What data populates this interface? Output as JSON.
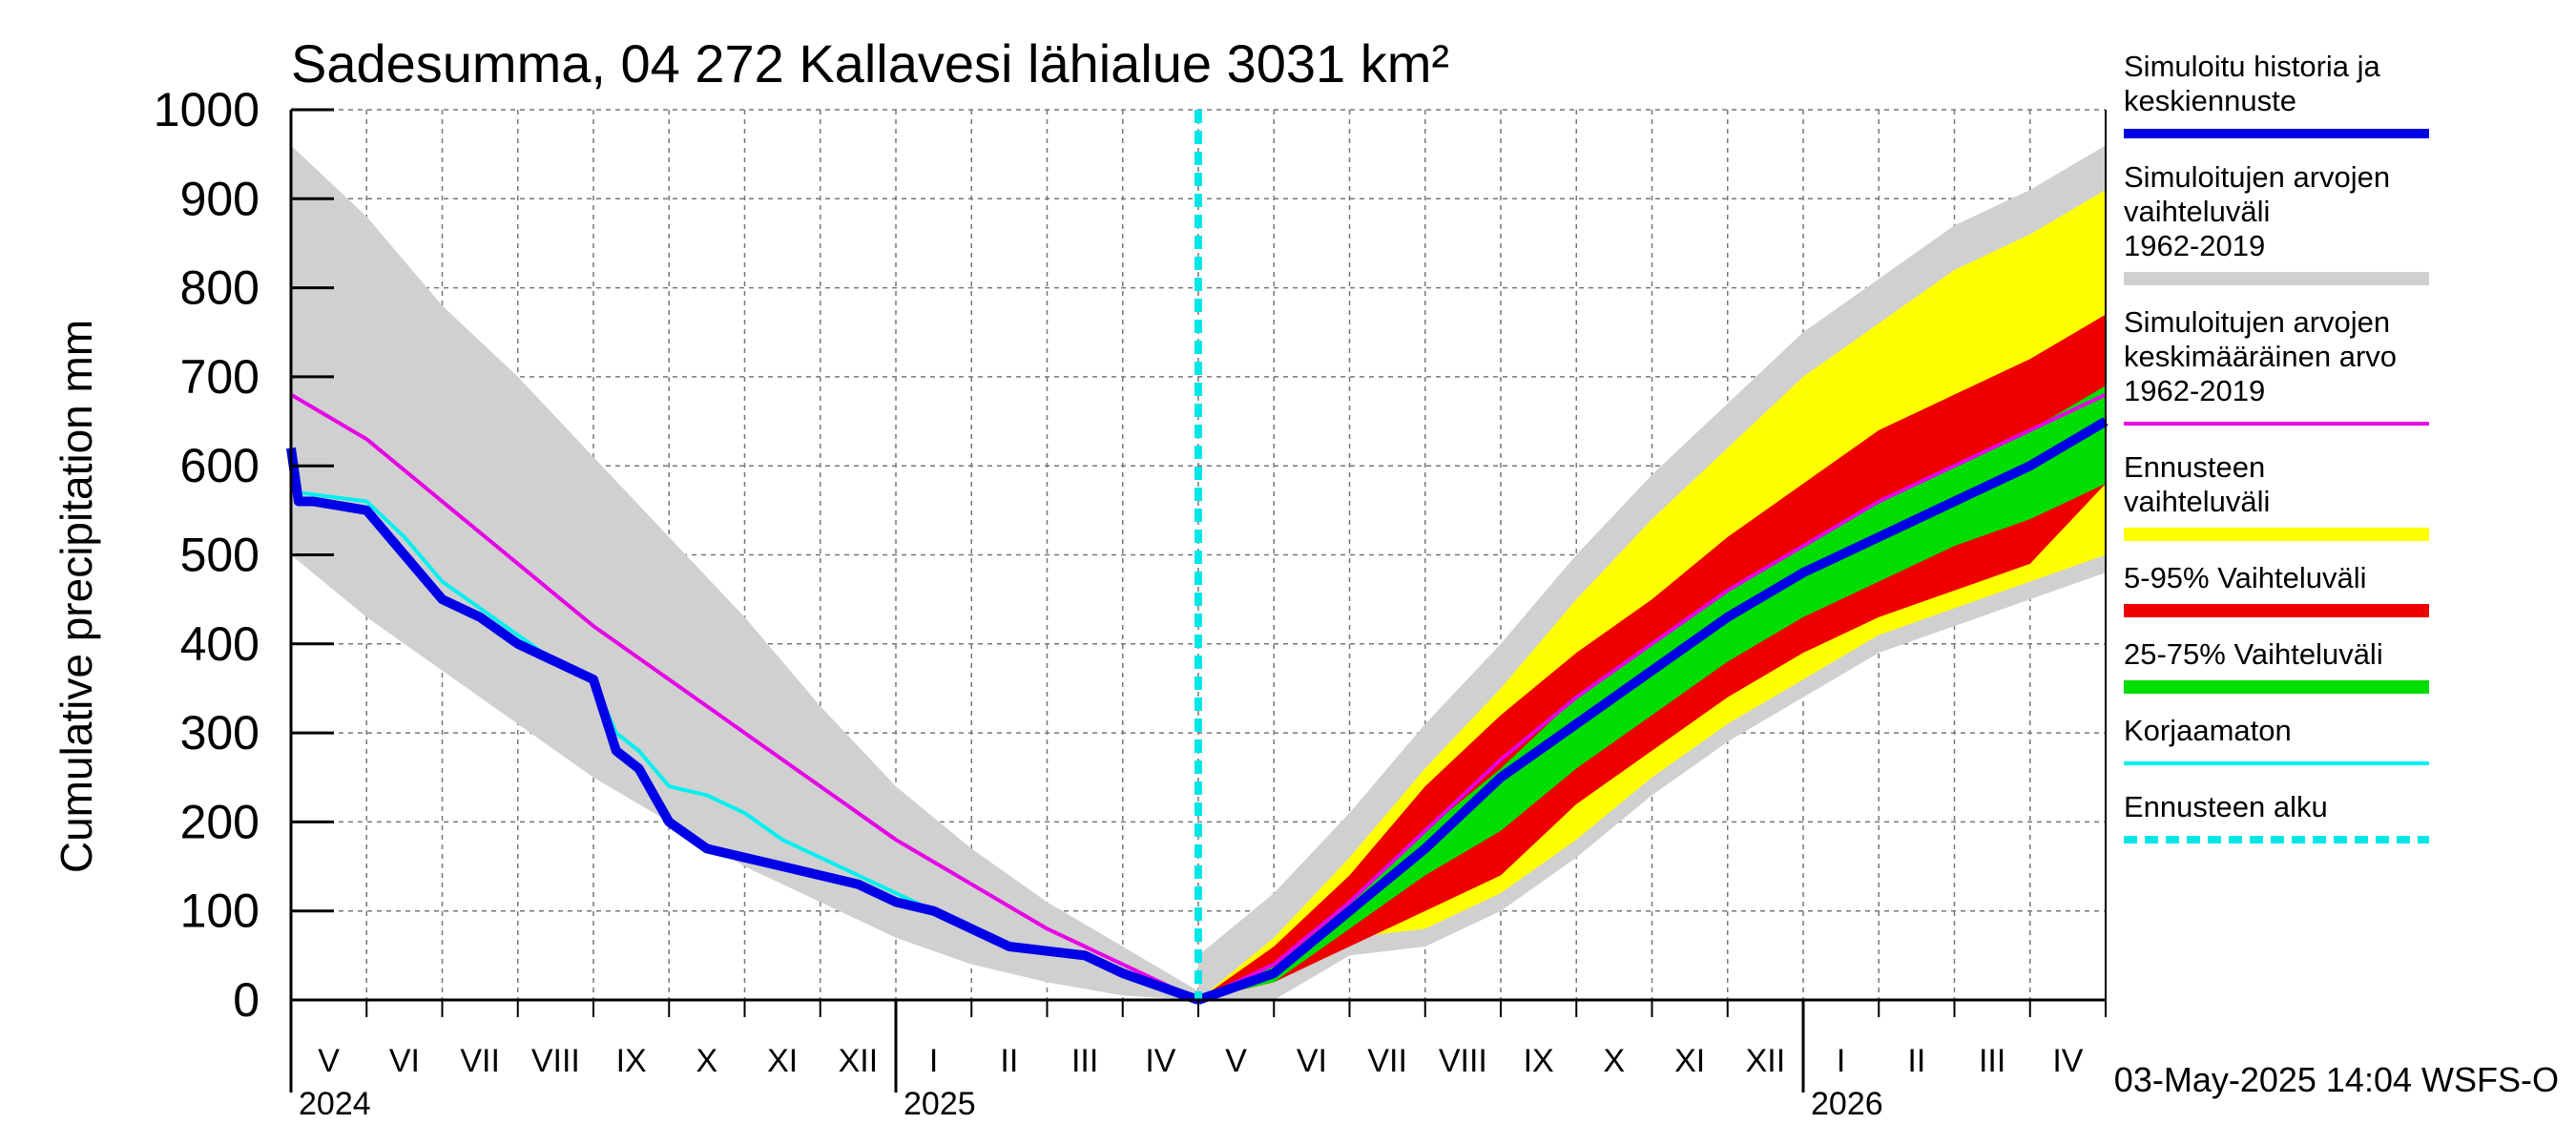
{
  "chart_data": {
    "type": "area",
    "title": "Sadesumma, 04 272 Kallavesi lähialue 3031 km²",
    "ylabel": "Cumulative precipitation   mm",
    "ylim": [
      0,
      1000
    ],
    "yticks": [
      0,
      100,
      200,
      300,
      400,
      500,
      600,
      700,
      800,
      900,
      1000
    ],
    "x_range_months": [
      0,
      24
    ],
    "forecast_start_month": 12,
    "month_labels": [
      "V",
      "VI",
      "VII",
      "VIII",
      "IX",
      "X",
      "XI",
      "XII",
      "I",
      "II",
      "III",
      "IV",
      "V",
      "VI",
      "VII",
      "VIII",
      "IX",
      "X",
      "XI",
      "XII",
      "I",
      "II",
      "III",
      "IV"
    ],
    "year_labels": [
      {
        "label": "2024",
        "month": 0
      },
      {
        "label": "2025",
        "month": 8
      },
      {
        "label": "2026",
        "month": 20
      }
    ],
    "legend": [
      {
        "label": "Simuloitu historia ja keskiennuste",
        "color": "#0000e6",
        "style": "thick"
      },
      {
        "label": "Simuloitujen arvojen vaihteluväli 1962-2019",
        "color": "#d0d0d0",
        "style": "band"
      },
      {
        "label": "Simuloitujen arvojen keskimääräinen arvo 1962-2019",
        "color": "#e600e6",
        "style": "line"
      },
      {
        "label": "Ennusteen vaihteluväli",
        "color": "#ffff00",
        "style": "band"
      },
      {
        "label": "5-95% Vaihteluväli",
        "color": "#ee0000",
        "style": "band"
      },
      {
        "label": "25-75% Vaihteluväli",
        "color": "#00dd00",
        "style": "band"
      },
      {
        "label": "Korjaamaton",
        "color": "#00f0f0",
        "style": "line"
      },
      {
        "label": "Ennusteen alku",
        "color": "#00e6e6",
        "style": "dashed"
      }
    ],
    "series": [
      {
        "name": "hist_range_upper",
        "x": [
          0,
          1,
          2,
          3,
          4,
          5,
          6,
          7,
          8,
          9,
          10,
          11,
          12
        ],
        "values": [
          960,
          880,
          780,
          700,
          610,
          520,
          430,
          330,
          240,
          170,
          110,
          60,
          10
        ]
      },
      {
        "name": "hist_range_lower",
        "x": [
          0,
          1,
          2,
          3,
          4,
          5,
          6,
          7,
          8,
          9,
          10,
          11,
          12
        ],
        "values": [
          500,
          430,
          370,
          310,
          250,
          200,
          150,
          110,
          70,
          40,
          20,
          5,
          0
        ]
      },
      {
        "name": "simulated_history",
        "x": [
          0,
          0.1,
          0.3,
          1,
          1.5,
          2,
          2.5,
          3,
          3.5,
          4,
          4.3,
          4.6,
          5,
          5.5,
          6,
          6.5,
          7,
          7.5,
          8,
          8.5,
          9,
          9.5,
          10,
          10.5,
          11,
          11.5,
          12
        ],
        "values": [
          620,
          560,
          560,
          550,
          500,
          450,
          430,
          400,
          380,
          360,
          280,
          260,
          200,
          170,
          160,
          150,
          140,
          130,
          110,
          100,
          80,
          60,
          55,
          50,
          30,
          15,
          0
        ]
      },
      {
        "name": "uncorrected",
        "x": [
          0,
          0.1,
          1,
          1.5,
          2,
          2.5,
          3,
          3.5,
          4,
          4.3,
          4.6,
          5,
          5.5,
          6,
          6.5,
          7,
          7.5,
          8,
          8.5,
          9,
          9.5,
          10,
          10.5,
          11,
          11.5,
          12
        ],
        "values": [
          575,
          570,
          560,
          520,
          470,
          440,
          410,
          380,
          360,
          300,
          280,
          240,
          230,
          210,
          180,
          160,
          140,
          120,
          100,
          80,
          60,
          55,
          50,
          30,
          15,
          0
        ]
      },
      {
        "name": "hist_mean",
        "x": [
          0,
          1,
          2,
          3,
          4,
          5,
          6,
          7,
          8,
          9,
          10,
          11,
          12
        ],
        "values": [
          680,
          630,
          560,
          490,
          420,
          360,
          300,
          240,
          180,
          130,
          80,
          40,
          0
        ]
      },
      {
        "name": "fc_range_upper",
        "x": [
          12,
          13,
          14,
          15,
          16,
          17,
          18,
          19,
          20,
          21,
          22,
          23,
          24
        ],
        "values": [
          0,
          70,
          160,
          260,
          350,
          450,
          540,
          620,
          700,
          760,
          820,
          860,
          910
        ]
      },
      {
        "name": "fc_range_lower",
        "x": [
          12,
          13,
          14,
          15,
          16,
          17,
          18,
          19,
          20,
          21,
          22,
          23,
          24
        ],
        "values": [
          0,
          20,
          70,
          80,
          120,
          180,
          250,
          310,
          360,
          410,
          440,
          470,
          500
        ]
      },
      {
        "name": "fc_5_95_upper",
        "x": [
          12,
          13,
          14,
          15,
          16,
          17,
          18,
          19,
          20,
          21,
          22,
          23,
          24
        ],
        "values": [
          0,
          60,
          140,
          240,
          320,
          390,
          450,
          520,
          580,
          640,
          680,
          720,
          770
        ]
      },
      {
        "name": "fc_5_95_lower",
        "x": [
          12,
          13,
          14,
          15,
          16,
          17,
          18,
          19,
          20,
          21,
          22,
          23,
          24
        ],
        "values": [
          0,
          20,
          60,
          100,
          140,
          220,
          280,
          340,
          390,
          430,
          460,
          490,
          580
        ]
      },
      {
        "name": "fc_25_75_upper",
        "x": [
          12,
          13,
          14,
          15,
          16,
          17,
          18,
          19,
          20,
          21,
          22,
          23,
          24
        ],
        "values": [
          0,
          40,
          110,
          190,
          260,
          340,
          400,
          460,
          510,
          560,
          600,
          640,
          690
        ]
      },
      {
        "name": "fc_25_75_lower",
        "x": [
          12,
          13,
          14,
          15,
          16,
          17,
          18,
          19,
          20,
          21,
          22,
          23,
          24
        ],
        "values": [
          0,
          20,
          80,
          140,
          190,
          260,
          320,
          380,
          430,
          470,
          510,
          540,
          580
        ]
      },
      {
        "name": "forecast_mean",
        "x": [
          12,
          13,
          14,
          15,
          16,
          17,
          18,
          19,
          20,
          21,
          22,
          23,
          24
        ],
        "values": [
          0,
          30,
          100,
          170,
          250,
          310,
          370,
          430,
          480,
          520,
          560,
          600,
          650
        ]
      },
      {
        "name": "forecast_hist_mean",
        "x": [
          12,
          13,
          14,
          15,
          16,
          17,
          18,
          19,
          20,
          21,
          22,
          23,
          24
        ],
        "values": [
          0,
          40,
          110,
          190,
          270,
          340,
          400,
          460,
          510,
          560,
          600,
          640,
          680
        ]
      }
    ]
  },
  "footer": {
    "timestamp": "03-May-2025 14:04 WSFS-O"
  }
}
